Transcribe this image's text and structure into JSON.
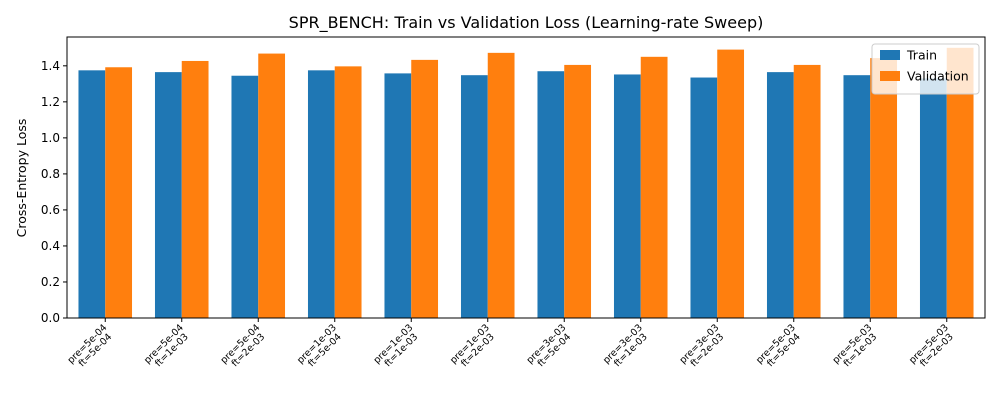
{
  "chart_data": {
    "type": "bar",
    "title": "SPR_BENCH: Train vs Validation Loss (Learning-rate Sweep)",
    "xlabel": "",
    "ylabel": "Cross-Entropy Loss",
    "ylim": [
      0,
      1.56
    ],
    "yticks": [
      "0.0",
      "0.2",
      "0.4",
      "0.6",
      "0.8",
      "1.0",
      "1.2",
      "1.4"
    ],
    "categories": [
      [
        "pre=5e-04",
        "ft=5e-04"
      ],
      [
        "pre=5e-04",
        "ft=1e-03"
      ],
      [
        "pre=5e-04",
        "ft=2e-03"
      ],
      [
        "pre=1e-03",
        "ft=5e-04"
      ],
      [
        "pre=1e-03",
        "ft=1e-03"
      ],
      [
        "pre=1e-03",
        "ft=2e-03"
      ],
      [
        "pre=3e-03",
        "ft=5e-04"
      ],
      [
        "pre=3e-03",
        "ft=1e-03"
      ],
      [
        "pre=3e-03",
        "ft=2e-03"
      ],
      [
        "pre=5e-03",
        "ft=5e-04"
      ],
      [
        "pre=5e-03",
        "ft=1e-03"
      ],
      [
        "pre=5e-03",
        "ft=2e-03"
      ]
    ],
    "series": [
      {
        "name": "Train",
        "color": "#1f77b4",
        "values": [
          1.375,
          1.365,
          1.345,
          1.375,
          1.358,
          1.348,
          1.37,
          1.352,
          1.335,
          1.365,
          1.348,
          1.33
        ]
      },
      {
        "name": "Validation",
        "color": "#ff7f0e",
        "values": [
          1.392,
          1.427,
          1.468,
          1.397,
          1.433,
          1.472,
          1.405,
          1.45,
          1.49,
          1.405,
          1.443,
          1.5
        ]
      }
    ],
    "grid": false,
    "legend_position": "top-right"
  }
}
